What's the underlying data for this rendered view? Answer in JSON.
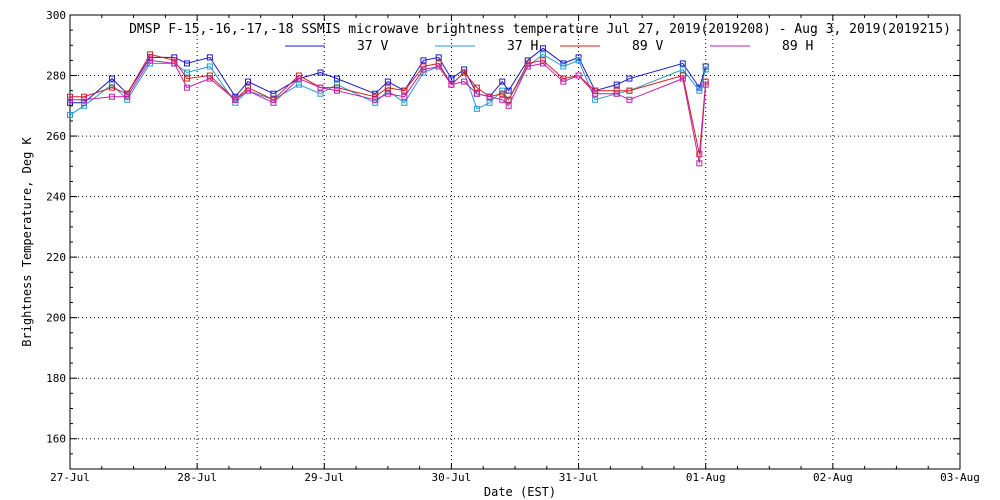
{
  "chart_data": {
    "type": "line",
    "title": "DMSP F-15,-16,-17,-18 SSMIS microwave brightness temperature Jul 27, 2019(2019208) - Aug  3, 2019(2019215)",
    "xlabel": "Date (EST)",
    "ylabel": "Brightness Temperature, Deg K",
    "x_ticks": [
      "27-Jul",
      "28-Jul",
      "29-Jul",
      "30-Jul",
      "31-Jul",
      "01-Aug",
      "02-Aug",
      "03-Aug"
    ],
    "xlim_days": [
      0,
      7
    ],
    "ylim": [
      150,
      300
    ],
    "y_ticks": [
      160,
      180,
      200,
      220,
      240,
      260,
      280,
      300
    ],
    "grid": true,
    "legend_position": "top-center",
    "series": [
      {
        "name": "37 V",
        "color": "#1a1ac8",
        "x": [
          0.0,
          0.11,
          0.33,
          0.45,
          0.63,
          0.82,
          0.92,
          1.1,
          1.3,
          1.4,
          1.6,
          1.8,
          1.97,
          2.1,
          2.4,
          2.5,
          2.63,
          2.78,
          2.9,
          3.0,
          3.1,
          3.2,
          3.3,
          3.4,
          3.45,
          3.6,
          3.72,
          3.88,
          4.0,
          4.13,
          4.3,
          4.4,
          4.82,
          4.95,
          5.0
        ],
        "y": [
          271,
          271,
          279,
          274,
          286,
          286,
          284,
          286,
          273,
          278,
          274,
          279,
          281,
          279,
          274,
          278,
          275,
          285,
          286,
          279,
          282,
          274,
          273,
          278,
          275,
          285,
          289,
          284,
          286,
          275,
          277,
          279,
          284,
          276,
          283
        ]
      },
      {
        "name": "37 H",
        "color": "#2a9ad0",
        "x": [
          0.0,
          0.11,
          0.33,
          0.45,
          0.63,
          0.82,
          0.92,
          1.1,
          1.3,
          1.4,
          1.6,
          1.8,
          1.97,
          2.1,
          2.4,
          2.5,
          2.63,
          2.78,
          2.9,
          3.0,
          3.1,
          3.2,
          3.3,
          3.4,
          3.45,
          3.6,
          3.72,
          3.88,
          4.0,
          4.13,
          4.3,
          4.4,
          4.82,
          4.95,
          5.0
        ],
        "y": [
          267,
          270,
          277,
          272,
          284,
          284,
          281,
          283,
          271,
          275,
          272,
          277,
          274,
          277,
          271,
          275,
          271,
          281,
          283,
          277,
          281,
          269,
          271,
          275,
          272,
          283,
          287,
          283,
          285,
          272,
          274,
          275,
          282,
          275,
          282
        ]
      },
      {
        "name": "89 V",
        "color": "#d02020",
        "x": [
          0.0,
          0.11,
          0.33,
          0.45,
          0.63,
          0.82,
          0.92,
          1.1,
          1.3,
          1.4,
          1.6,
          1.8,
          1.97,
          2.1,
          2.4,
          2.5,
          2.63,
          2.78,
          2.9,
          3.0,
          3.1,
          3.2,
          3.3,
          3.4,
          3.45,
          3.6,
          3.72,
          3.88,
          4.0,
          4.13,
          4.3,
          4.4,
          4.82,
          4.95,
          5.0
        ],
        "y": [
          273,
          273,
          276,
          274,
          287,
          285,
          279,
          280,
          272,
          276,
          272,
          280,
          276,
          276,
          273,
          276,
          275,
          283,
          284,
          277,
          281,
          276,
          273,
          274,
          272,
          284,
          285,
          279,
          280,
          275,
          275,
          275,
          280,
          254,
          278
        ]
      },
      {
        "name": "89 H",
        "color": "#c020a8",
        "x": [
          0.0,
          0.11,
          0.33,
          0.45,
          0.63,
          0.82,
          0.92,
          1.1,
          1.3,
          1.4,
          1.6,
          1.8,
          1.97,
          2.1,
          2.4,
          2.5,
          2.63,
          2.78,
          2.9,
          3.0,
          3.1,
          3.2,
          3.3,
          3.4,
          3.45,
          3.6,
          3.72,
          3.88,
          4.0,
          4.13,
          4.3,
          4.4,
          4.82,
          4.95,
          5.0
        ],
        "y": [
          272,
          272,
          273,
          273,
          285,
          284,
          276,
          279,
          272,
          275,
          271,
          279,
          276,
          275,
          272,
          274,
          273,
          282,
          283,
          277,
          278,
          274,
          273,
          272,
          270,
          283,
          284,
          278,
          280,
          274,
          274,
          272,
          279,
          251,
          277
        ]
      }
    ]
  }
}
